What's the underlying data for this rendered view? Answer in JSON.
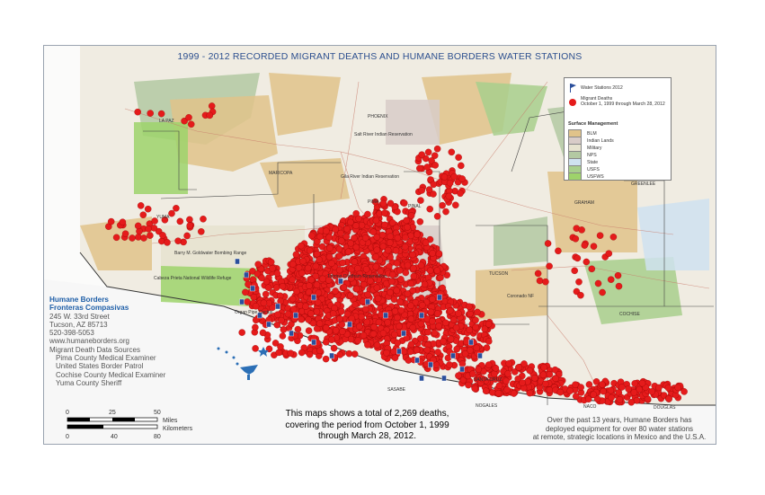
{
  "title": "1999 - 2012 RECORDED MIGRANT DEATHS AND HUMANE BORDERS WATER STATIONS",
  "legend": {
    "water_stations": "Water Stations 2012",
    "migrant_deaths_line1": "Migrant Deaths",
    "migrant_deaths_line2": "October 1, 1999 through March 28, 2012",
    "surface_header": "Surface Management",
    "categories": [
      {
        "label": "BLM",
        "color": "#e0c38a"
      },
      {
        "label": "Indian Lands",
        "color": "#d8ccc8"
      },
      {
        "label": "Military",
        "color": "#e6e3cf"
      },
      {
        "label": "NPS",
        "color": "#b3c9a2"
      },
      {
        "label": "State",
        "color": "#cfe2f0"
      },
      {
        "label": "USFS",
        "color": "#a8cf8c"
      },
      {
        "label": "USFWS",
        "color": "#9ed36b"
      }
    ]
  },
  "colors": {
    "deaths": "#e51b1b",
    "water_station": "#2b4f9c"
  },
  "org": {
    "name1": "Humane Borders",
    "name2": "Fronteras Compasivas",
    "address1": "245 W. 33rd Street",
    "address2": "Tucson, AZ 85713",
    "phone": "520-398-5053",
    "website": "www.humaneborders.org",
    "sources_header": "Migrant Death Data Sources",
    "sources": [
      "Pima County Medical Examiner",
      "United States Border Patrol",
      "Cochise County Medical Examiner",
      "Yuma County Sheriff"
    ]
  },
  "scale": {
    "miles_ticks": [
      "0",
      "25",
      "50"
    ],
    "miles_label": "Miles",
    "km_label": "Kilometers",
    "km_ticks": [
      "0",
      "40",
      "80"
    ]
  },
  "caption": {
    "line1": "This maps shows a total of 2,269 deaths,",
    "line2": "covering the period from October 1, 1999",
    "line3": "through March 28, 2012."
  },
  "note": {
    "line1": "Over the past 13 years, Humane Borders has",
    "line2": "deployed equipment for over 80 water stations",
    "line3": "at remote, strategic locations in Mexico and the U.S.A."
  },
  "places": {
    "la_paz": "LA PAZ",
    "phoenix": "PHOENIX",
    "salt_river": "Salt River Indian Reservation",
    "maricopa": "MARICOPA",
    "gila_river": "Gila River Indian Reservation",
    "pinal": "PINAL",
    "yuma": "YUMA",
    "goldwater": "Barry M. Goldwater Bombing Range",
    "cabeza": "Cabeza Prieta National Wildlife Refuge",
    "organ_pipe": "Organ Pipe Cactus",
    "tohono": "Tohono O'odham Reservation",
    "tucson": "TUCSON",
    "coronado": "Coronado NF",
    "greenlee": "GREENLEE",
    "graham": "GRAHAM",
    "cochise": "COCHISE",
    "pima": "PIMA",
    "santa_cruz": "SANTA CRUZ",
    "sasabe": "SASABE",
    "nogales": "NOGALES",
    "naco": "NACO",
    "douglas": "DOUGLAS"
  }
}
